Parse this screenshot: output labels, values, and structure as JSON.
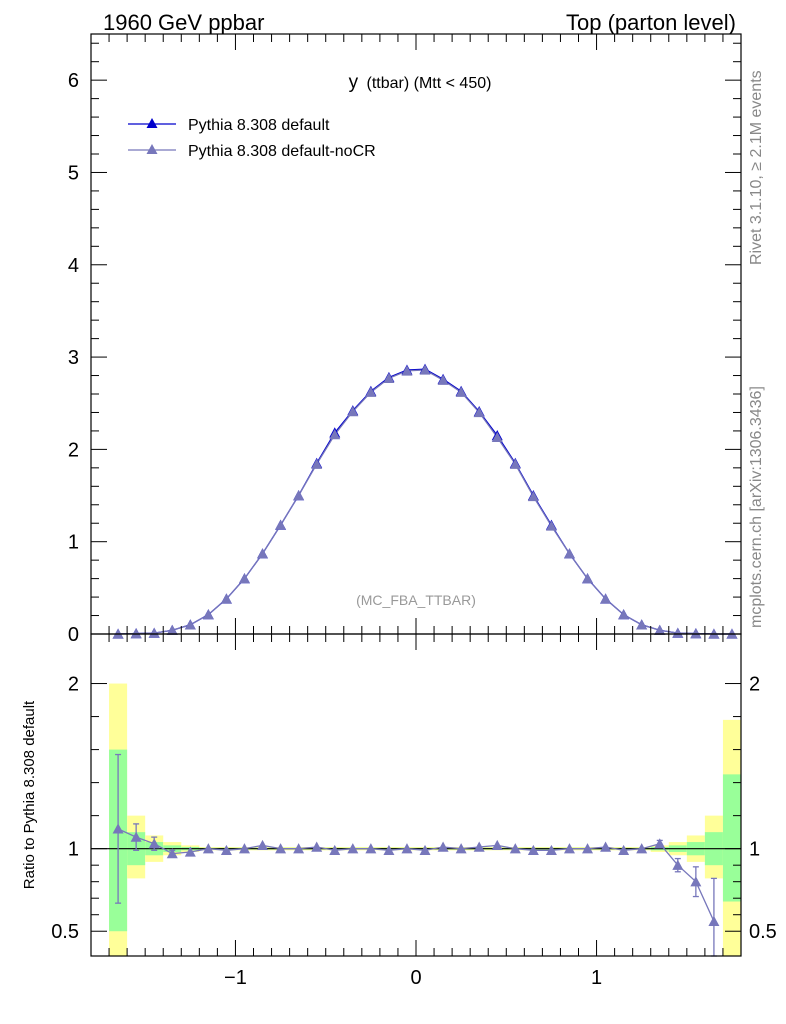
{
  "header": {
    "left": "1960 GeV ppbar",
    "right": "Top (parton level)"
  },
  "side": {
    "top": "Rivet 3.1.10, ≥ 2.1M events",
    "bottom": "mcplots.cern.ch [arXiv:1306.3436]"
  },
  "watermark": "(MC_FBA_TTBAR)",
  "colors": {
    "series1": "#0000cc",
    "series2": "#7777bb",
    "band_inner": "#99ff99",
    "band_outer": "#ffff99"
  },
  "chart_data": [
    {
      "type": "line",
      "title_main": "y",
      "title_sub": "(ttbar) (Mtt < 450)",
      "xlabel": "",
      "ylabel": "",
      "xlim": [
        -1.8,
        1.8
      ],
      "ylim": [
        0,
        6.5
      ],
      "yticks": [
        "0",
        "1",
        "2",
        "3",
        "4",
        "5",
        "6"
      ],
      "legend_position": "top-left",
      "x": [
        -1.65,
        -1.55,
        -1.45,
        -1.35,
        -1.25,
        -1.15,
        -1.05,
        -0.95,
        -0.85,
        -0.75,
        -0.65,
        -0.55,
        -0.45,
        -0.35,
        -0.25,
        -0.15,
        -0.05,
        0.05,
        0.15,
        0.25,
        0.35,
        0.45,
        0.55,
        0.65,
        0.75,
        0.85,
        0.95,
        1.05,
        1.15,
        1.25,
        1.35,
        1.45,
        1.55,
        1.65,
        1.75
      ],
      "series": [
        {
          "name": "Pythia 8.308 default",
          "values": [
            0.0,
            0.005,
            0.01,
            0.04,
            0.1,
            0.21,
            0.38,
            0.6,
            0.87,
            1.18,
            1.5,
            1.85,
            2.18,
            2.42,
            2.63,
            2.78,
            2.86,
            2.87,
            2.76,
            2.63,
            2.41,
            2.15,
            1.85,
            1.5,
            1.18,
            0.87,
            0.6,
            0.38,
            0.21,
            0.1,
            0.04,
            0.01,
            0.005,
            0.0,
            0.0
          ]
        },
        {
          "name": "Pythia 8.308 default-noCR",
          "values": [
            0.0,
            0.005,
            0.01,
            0.04,
            0.1,
            0.21,
            0.38,
            0.6,
            0.87,
            1.18,
            1.5,
            1.84,
            2.16,
            2.41,
            2.62,
            2.77,
            2.85,
            2.86,
            2.75,
            2.62,
            2.4,
            2.13,
            1.84,
            1.49,
            1.17,
            0.87,
            0.6,
            0.38,
            0.21,
            0.1,
            0.04,
            0.01,
            0.005,
            0.0,
            0.0
          ]
        }
      ]
    },
    {
      "type": "line",
      "ylabel": "Ratio to Pythia 8.308 default",
      "xlim": [
        -1.8,
        1.8
      ],
      "ylim": [
        0.35,
        2.3
      ],
      "xticks": [
        "−1",
        "0",
        "1"
      ],
      "yticks": [
        "0.5",
        "1",
        "2"
      ],
      "bands": {
        "edges": [
          -1.7,
          -1.6,
          -1.5,
          -1.4,
          -1.3,
          -1.2,
          1.2,
          1.3,
          1.4,
          1.5,
          1.6,
          1.7
        ],
        "inner_low": [
          0.5,
          0.9,
          0.96,
          0.98,
          0.99,
          0.995,
          0.995,
          0.99,
          0.98,
          0.96,
          0.9,
          0.68
        ],
        "inner_high": [
          1.6,
          1.1,
          1.04,
          1.02,
          1.01,
          1.005,
          1.005,
          1.01,
          1.02,
          1.04,
          1.1,
          1.45
        ],
        "outer_low": [
          0.35,
          0.82,
          0.92,
          0.96,
          0.98,
          0.99,
          0.99,
          0.98,
          0.96,
          0.92,
          0.82,
          0.35
        ],
        "outer_high": [
          2.0,
          1.2,
          1.08,
          1.04,
          1.02,
          1.01,
          1.01,
          1.02,
          1.04,
          1.08,
          1.2,
          1.78
        ]
      },
      "x": [
        -1.65,
        -1.55,
        -1.45,
        -1.35,
        -1.25,
        -1.15,
        -1.05,
        -0.95,
        -0.85,
        -0.75,
        -0.65,
        -0.55,
        -0.45,
        -0.35,
        -0.25,
        -0.15,
        -0.05,
        0.05,
        0.15,
        0.25,
        0.35,
        0.45,
        0.55,
        0.65,
        0.75,
        0.85,
        0.95,
        1.05,
        1.15,
        1.25,
        1.35,
        1.45,
        1.55,
        1.65
      ],
      "series": [
        {
          "name": "Pythia 8.308 default-noCR",
          "values": [
            1.12,
            1.07,
            1.03,
            0.97,
            0.98,
            1.0,
            0.99,
            1.0,
            1.02,
            1.0,
            1.0,
            1.01,
            0.99,
            1.0,
            1.0,
            0.99,
            1.0,
            0.99,
            1.01,
            1.0,
            1.01,
            1.02,
            1.0,
            0.99,
            0.99,
            1.0,
            1.0,
            1.01,
            0.99,
            1.0,
            1.03,
            0.9,
            0.8,
            0.56
          ],
          "errors": [
            0.45,
            0.08,
            0.04,
            0.02,
            0.01,
            0.005,
            0.005,
            0.005,
            0.005,
            0.005,
            0.005,
            0.005,
            0.005,
            0.005,
            0.005,
            0.005,
            0.005,
            0.005,
            0.005,
            0.005,
            0.005,
            0.005,
            0.005,
            0.005,
            0.005,
            0.005,
            0.005,
            0.005,
            0.005,
            0.01,
            0.02,
            0.04,
            0.09,
            0.26
          ]
        }
      ]
    }
  ]
}
